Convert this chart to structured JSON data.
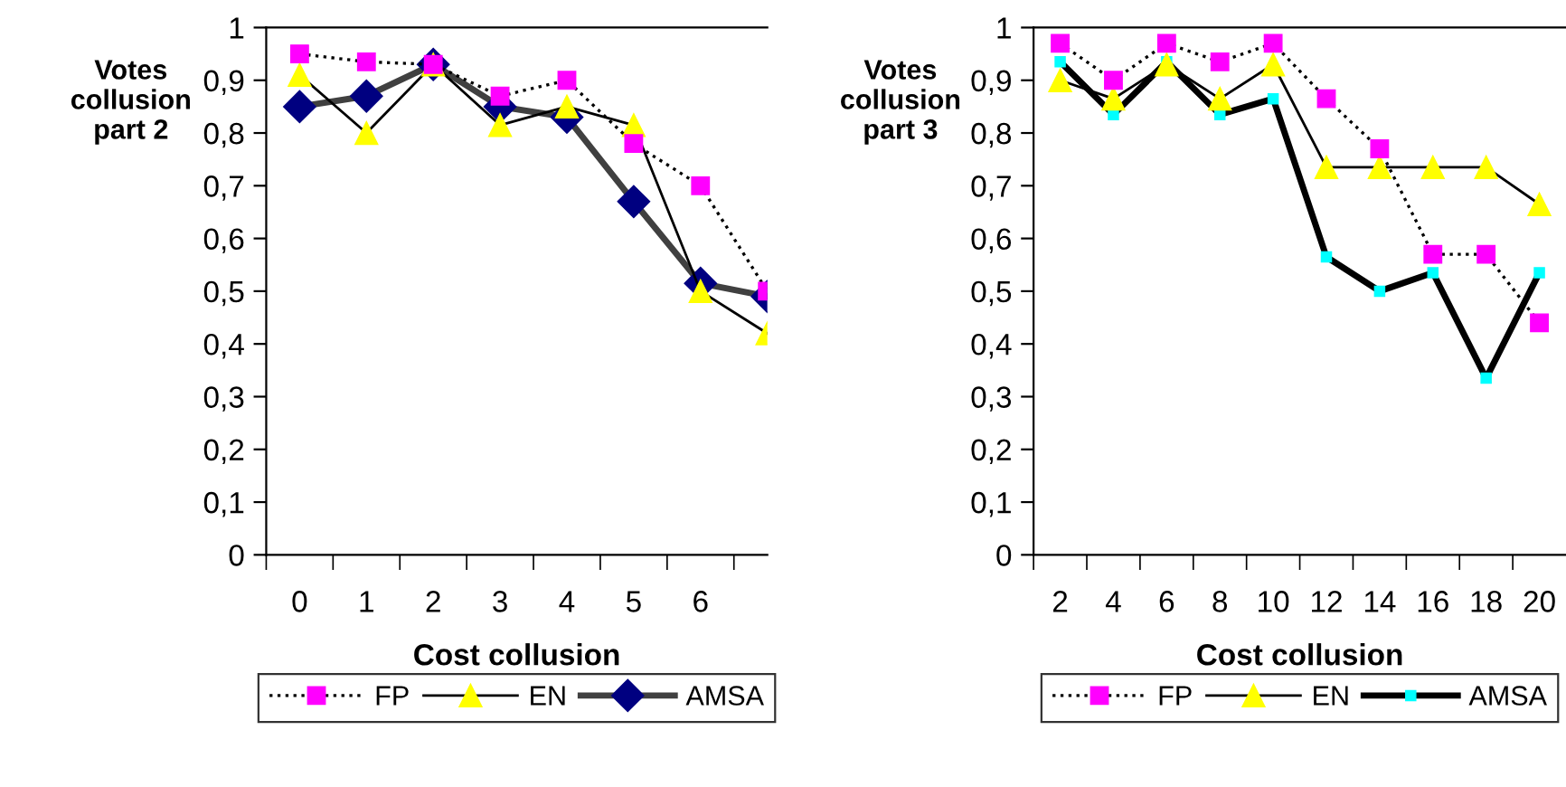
{
  "chart_data": [
    {
      "type": "line",
      "xlabel": "Cost collusion",
      "ylabel": "Votes\ncollusion\npart 2",
      "categories": [
        "0",
        "1",
        "2",
        "3",
        "4",
        "5",
        "6",
        null
      ],
      "ylim": [
        0,
        1
      ],
      "yticks": [
        0,
        {
          "value": 0.1,
          "label": "0,1"
        },
        {
          "value": 0.2,
          "label": "0,2"
        },
        {
          "value": 0.3,
          "label": "0,3"
        },
        {
          "value": 0.4,
          "label": "0,4"
        },
        {
          "value": 0.5,
          "label": "0,5"
        },
        {
          "value": 0.6,
          "label": "0,6"
        },
        {
          "value": 0.7,
          "label": "0,7"
        },
        {
          "value": 0.8,
          "label": "0,8"
        },
        {
          "value": 0.9,
          "label": "0,9"
        },
        1
      ],
      "grid": false,
      "legend": "bottom",
      "series": [
        {
          "name": "FP",
          "color": "#ff00ff",
          "marker": "square",
          "line_style": "dotted",
          "values": [
            0.95,
            0.935,
            0.93,
            0.87,
            0.9,
            0.78,
            0.7,
            0.5
          ]
        },
        {
          "name": "EN",
          "color": "#ffff00",
          "marker": "triangle",
          "line_style": "solid",
          "values": [
            0.91,
            0.8,
            0.93,
            0.815,
            0.85,
            0.815,
            0.5,
            0.42
          ]
        },
        {
          "name": "AMSA",
          "color": "#000080",
          "marker": "diamond",
          "line_style": "solid",
          "values": [
            0.85,
            0.87,
            0.93,
            0.85,
            0.83,
            0.67,
            0.515,
            0.49
          ]
        }
      ]
    },
    {
      "type": "line",
      "xlabel": "Cost collusion",
      "ylabel": "Votes\ncollusion\npart 3",
      "categories": [
        "2",
        "4",
        "6",
        "8",
        "10",
        "12",
        "14",
        "16",
        "18",
        "20"
      ],
      "ylim": [
        0,
        1
      ],
      "yticks": [
        0,
        {
          "value": 0.1,
          "label": "0,1"
        },
        {
          "value": 0.2,
          "label": "0,2"
        },
        {
          "value": 0.3,
          "label": "0,3"
        },
        {
          "value": 0.4,
          "label": "0,4"
        },
        {
          "value": 0.5,
          "label": "0,5"
        },
        {
          "value": 0.6,
          "label": "0,6"
        },
        {
          "value": 0.7,
          "label": "0,7"
        },
        {
          "value": 0.8,
          "label": "0,8"
        },
        {
          "value": 0.9,
          "label": "0,9"
        },
        1
      ],
      "grid": false,
      "legend": "bottom",
      "series": [
        {
          "name": "FP",
          "color": "#ff00ff",
          "marker": "square",
          "line_style": "dotted",
          "values": [
            0.97,
            0.9,
            0.97,
            0.935,
            0.97,
            0.865,
            0.77,
            0.57,
            0.57,
            0.44
          ]
        },
        {
          "name": "EN",
          "color": "#ffff00",
          "marker": "triangle",
          "line_style": "solid",
          "values": [
            0.9,
            0.865,
            0.93,
            0.865,
            0.93,
            0.735,
            0.735,
            0.735,
            0.735,
            0.665
          ]
        },
        {
          "name": "AMSA",
          "color": "#000000",
          "marker": "square",
          "line_style": "solid",
          "values": [
            0.935,
            0.835,
            0.935,
            0.835,
            0.865,
            0.565,
            0.5,
            0.535,
            0.335,
            0.535
          ]
        }
      ]
    }
  ]
}
